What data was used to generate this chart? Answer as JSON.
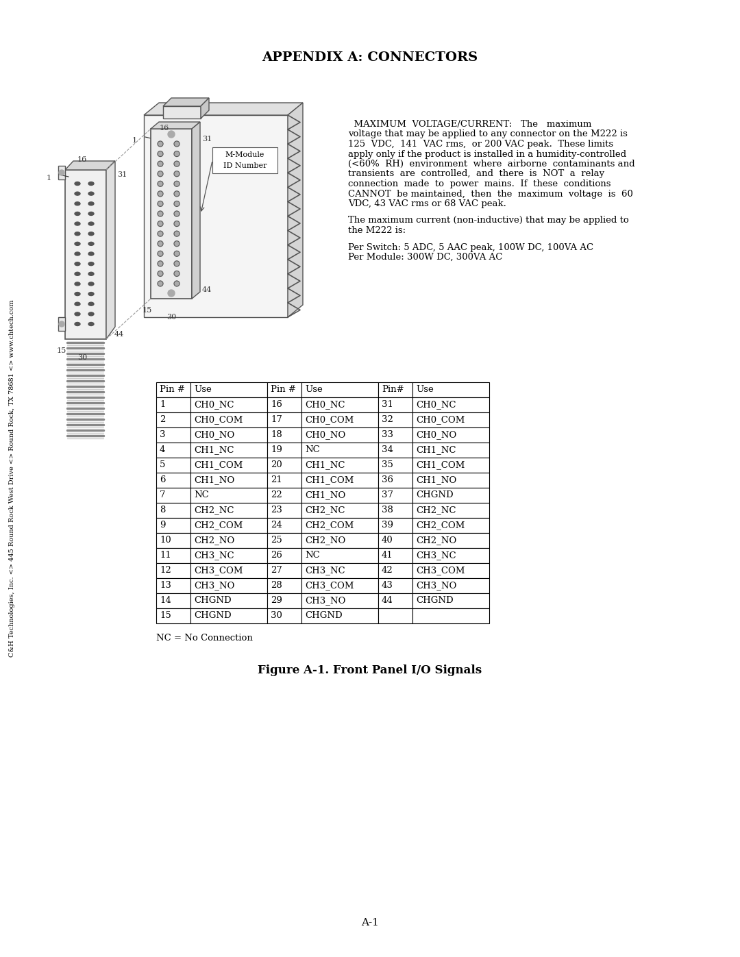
{
  "title": "APPENDIX A: CONNECTORS",
  "background_color": "#ffffff",
  "text_color": "#000000",
  "side_watermark": "C&H Technologies, Inc. <> 445 Round Rock West Drive <> Round Rock, TX 78681 <> www.chtech.com",
  "main_text_right_lines": [
    "  MAXIMUM  VOLTAGE/CURRENT:   The   maximum",
    "voltage that may be applied to any connector on the M222 is",
    "125  VDC,  141  VAC rms,  or 200 VAC peak.  These limits",
    "apply only if the product is installed in a humidity-controlled",
    "(<60%  RH)  environment  where  airborne  contaminants and",
    "transients  are  controlled,  and  there  is  NOT  a  relay",
    "connection  made  to  power  mains.  If  these  conditions",
    "CANNOT  be maintained,  then  the  maximum  voltage  is  60",
    "VDC, 43 VAC rms or 68 VAC peak."
  ],
  "main_text_right2": "The maximum current (non-inductive) that may be applied to\nthe M222 is:",
  "main_text_right3_lines": [
    "Per Switch: 5 ADC, 5 AAC peak, 100W DC, 100VA AC",
    "Per Module: 300W DC, 300VA AC"
  ],
  "nc_note": "NC = No Connection",
  "figure_caption": "Figure A-1. Front Panel I/O Signals",
  "page_number": "A-1",
  "table_headers": [
    "Pin #",
    "Use",
    "Pin #",
    "Use",
    "Pin#",
    "Use"
  ],
  "table_data": [
    [
      "1",
      "CH0_NC",
      "16",
      "CH0_NC",
      "31",
      "CH0_NC"
    ],
    [
      "2",
      "CH0_COM",
      "17",
      "CH0_COM",
      "32",
      "CH0_COM"
    ],
    [
      "3",
      "CH0_NO",
      "18",
      "CH0_NO",
      "33",
      "CH0_NO"
    ],
    [
      "4",
      "CH1_NC",
      "19",
      "NC",
      "34",
      "CH1_NC"
    ],
    [
      "5",
      "CH1_COM",
      "20",
      "CH1_NC",
      "35",
      "CH1_COM"
    ],
    [
      "6",
      "CH1_NO",
      "21",
      "CH1_COM",
      "36",
      "CH1_NO"
    ],
    [
      "7",
      "NC",
      "22",
      "CH1_NO",
      "37",
      "CHGND"
    ],
    [
      "8",
      "CH2_NC",
      "23",
      "CH2_NC",
      "38",
      "CH2_NC"
    ],
    [
      "9",
      "CH2_COM",
      "24",
      "CH2_COM",
      "39",
      "CH2_COM"
    ],
    [
      "10",
      "CH2_NO",
      "25",
      "CH2_NO",
      "40",
      "CH2_NO"
    ],
    [
      "11",
      "CH3_NC",
      "26",
      "NC",
      "41",
      "CH3_NC"
    ],
    [
      "12",
      "CH3_COM",
      "27",
      "CH3_NC",
      "42",
      "CH3_COM"
    ],
    [
      "13",
      "CH3_NO",
      "28",
      "CH3_COM",
      "43",
      "CH3_NO"
    ],
    [
      "14",
      "CHGND",
      "29",
      "CH3_NO",
      "44",
      "CHGND"
    ],
    [
      "15",
      "CHGND",
      "30",
      "CHGND",
      "",
      ""
    ]
  ]
}
